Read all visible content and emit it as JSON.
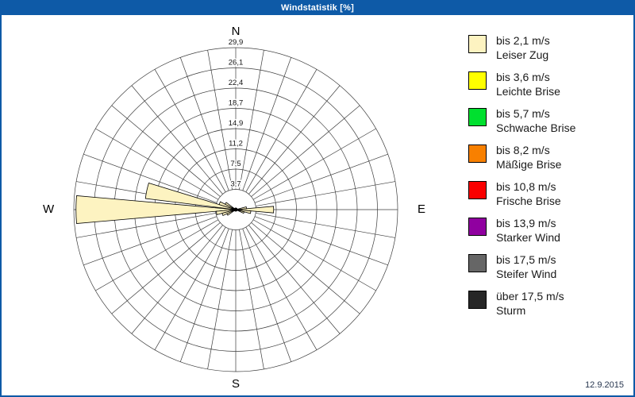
{
  "header": {
    "title": "Windstatistik [%]"
  },
  "footer": {
    "date": "12.9.2015"
  },
  "legend": {
    "items": [
      {
        "range": "bis 2,1 m/s",
        "name": "Leiser Zug",
        "color": "#fdf3c1"
      },
      {
        "range": "bis 3,6 m/s",
        "name": "Leichte Brise",
        "color": "#ffff00"
      },
      {
        "range": "bis 5,7 m/s",
        "name": "Schwache Brise",
        "color": "#00e02f"
      },
      {
        "range": "bis 8,2 m/s",
        "name": "Mäßige Brise",
        "color": "#f88000"
      },
      {
        "range": "bis 10,8 m/s",
        "name": "Frische Brise",
        "color": "#fa0000"
      },
      {
        "range": "bis 13,9 m/s",
        "name": "Starker Wind",
        "color": "#9000a0"
      },
      {
        "range": "bis 17,5 m/s",
        "name": "Steifer Wind",
        "color": "#666666"
      },
      {
        "range": "über 17,5 m/s",
        "name": "Sturm",
        "color": "#262626"
      }
    ]
  },
  "chart_data": {
    "type": "wind-rose",
    "title": "Windstatistik [%]",
    "unit": "%",
    "sectors": 36,
    "rings": [
      3.7,
      7.5,
      11.2,
      14.9,
      18.7,
      22.4,
      26.1,
      29.9
    ],
    "ring_labels": [
      "3,7",
      "7,5",
      "11,2",
      "14,9",
      "18,7",
      "22,4",
      "26,1",
      "29,9"
    ],
    "max": 29.9,
    "compass": {
      "n": "N",
      "e": "E",
      "s": "S",
      "w": "W"
    },
    "series": [
      {
        "name": "bis 2,1 m/s (Leiser Zug)",
        "color": "#fdf3c1",
        "points": [
          {
            "dir": 270,
            "value": 29.5
          },
          {
            "dir": 282,
            "value": 16.8
          },
          {
            "dir": 90,
            "value": 7.0
          },
          {
            "dir": 260,
            "value": 3.6
          },
          {
            "dir": 292,
            "value": 3.2
          },
          {
            "dir": 100,
            "value": 2.8
          },
          {
            "dir": 250,
            "value": 2.6
          },
          {
            "dir": 302,
            "value": 2.2
          },
          {
            "dir": 80,
            "value": 2.0
          },
          {
            "dir": 240,
            "value": 1.8
          },
          {
            "dir": 110,
            "value": 1.6
          }
        ]
      }
    ]
  }
}
